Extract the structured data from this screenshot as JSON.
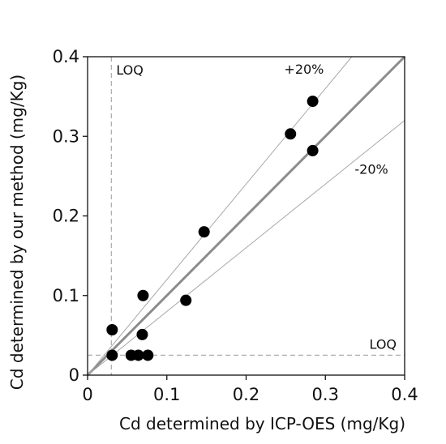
{
  "chart_data": {
    "type": "scatter",
    "title": "",
    "xlabel": "Cd determined by ICP-OES (mg/Kg)",
    "ylabel": "Cd determined by our method (mg/Kg)",
    "xlim": [
      0,
      0.4
    ],
    "ylim": [
      0,
      0.4
    ],
    "xticks": [
      "0",
      "0.1",
      "0.2",
      "0.3",
      "0.4"
    ],
    "yticks": [
      "0",
      "0.1",
      "0.2",
      "0.3",
      "0.4"
    ],
    "grid": false,
    "series": [
      {
        "points": [
          {
            "x": 0.031,
            "y": 0.057
          },
          {
            "x": 0.031,
            "y": 0.025
          },
          {
            "x": 0.055,
            "y": 0.025
          },
          {
            "x": 0.064,
            "y": 0.025
          },
          {
            "x": 0.076,
            "y": 0.025
          },
          {
            "x": 0.069,
            "y": 0.051
          },
          {
            "x": 0.07,
            "y": 0.1
          },
          {
            "x": 0.124,
            "y": 0.094
          },
          {
            "x": 0.147,
            "y": 0.18
          },
          {
            "x": 0.256,
            "y": 0.303
          },
          {
            "x": 0.284,
            "y": 0.344
          },
          {
            "x": 0.284,
            "y": 0.282
          }
        ]
      }
    ],
    "reference_lines": [
      {
        "label": "",
        "slope": 1.0
      },
      {
        "label": "+20%",
        "slope": 1.2
      },
      {
        "label": "-20%",
        "slope": 0.8
      }
    ],
    "loq": {
      "label": "LOQ",
      "x": 0.03,
      "y": 0.025
    }
  }
}
